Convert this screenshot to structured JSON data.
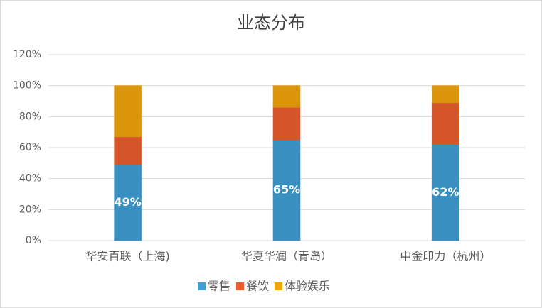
{
  "chart_data": {
    "type": "stacked-bar",
    "title": "业态分布",
    "categories": [
      "华安百联（上海)",
      "华夏华润（青岛）",
      "中金印力（杭州）"
    ],
    "series": [
      {
        "name": "零售",
        "color": "#3f9fd4",
        "values": [
          49,
          65,
          62
        ],
        "value_labels": [
          "49%",
          "65%",
          "62%"
        ]
      },
      {
        "name": "餐饮",
        "color": "#ec5f2c",
        "values": [
          18,
          21,
          27
        ]
      },
      {
        "name": "体验娱乐",
        "color": "#f3a60c",
        "values": [
          33,
          14,
          11
        ]
      }
    ],
    "ylim": [
      0,
      120
    ],
    "yticks": [
      {
        "value": 0,
        "label": "0%"
      },
      {
        "value": 20,
        "label": "20%"
      },
      {
        "value": 40,
        "label": "40%"
      },
      {
        "value": 60,
        "label": "60%"
      },
      {
        "value": 80,
        "label": "80%"
      },
      {
        "value": 100,
        "label": "100%"
      },
      {
        "value": 120,
        "label": "120%"
      }
    ],
    "grid": true,
    "legend": "bottom"
  }
}
